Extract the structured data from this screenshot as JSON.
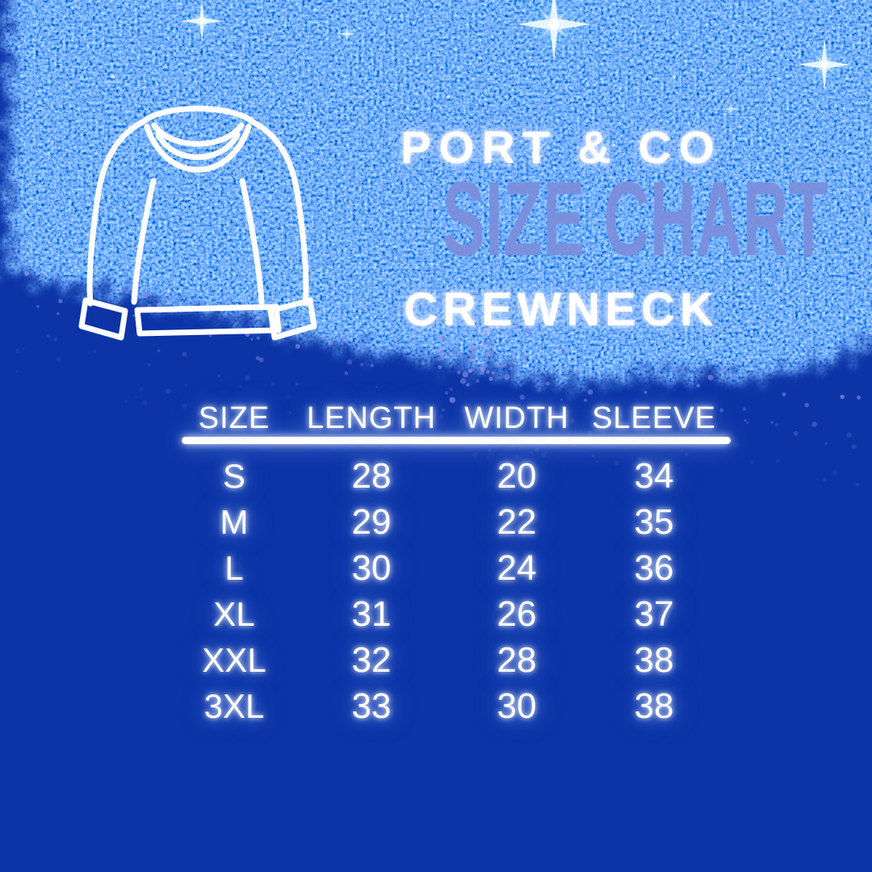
{
  "header": {
    "brand": "PORT & CO",
    "title": "SIZE CHART",
    "subtitle": "CREWNECK"
  },
  "chart_data": {
    "type": "table",
    "title": "SIZE CHART",
    "brand": "PORT & CO",
    "product": "CREWNECK",
    "columns": [
      "SIZE",
      "LENGTH",
      "WIDTH",
      "SLEEVE"
    ],
    "rows": [
      [
        "S",
        "28",
        "20",
        "34"
      ],
      [
        "M",
        "29",
        "22",
        "35"
      ],
      [
        "L",
        "30",
        "24",
        "36"
      ],
      [
        "XL",
        "31",
        "26",
        "37"
      ],
      [
        "XXL",
        "32",
        "28",
        "38"
      ],
      [
        "3XL",
        "33",
        "30",
        "38"
      ]
    ]
  },
  "icons": {
    "sweater": "crewneck-sweater-icon",
    "sparkles": "sparkle-starburst-icon"
  },
  "colors": {
    "background": "#0c34a7",
    "title_text": "#7b8fdc",
    "body_text": "#ffffff",
    "divider": "#ffffff",
    "glitter_bright": "#4a7df0"
  }
}
